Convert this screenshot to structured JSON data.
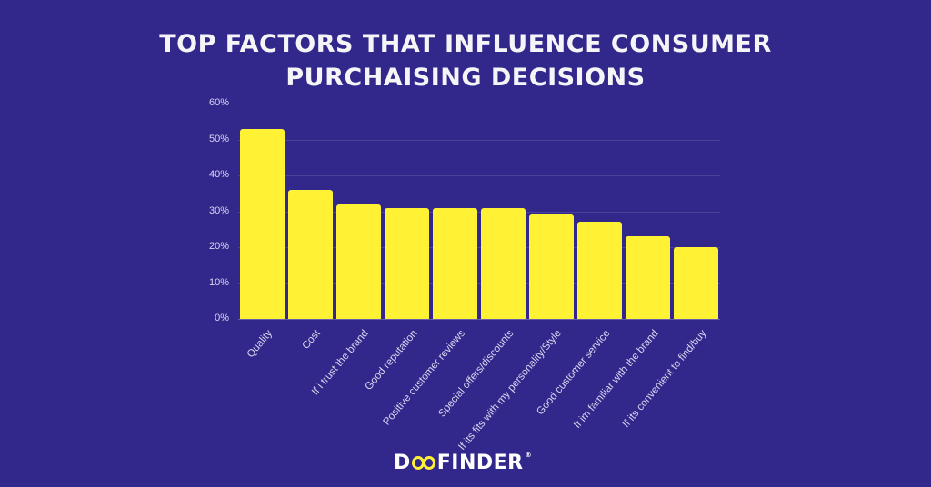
{
  "header": {
    "title_line1": "TOP FACTORS THAT INFLUENCE CONSUMER",
    "title_line2": "PURCHAISING DECISIONS"
  },
  "logo": {
    "prefix": "D",
    "suffix": "FINDER",
    "registered": "®",
    "accent_color": "#fff133"
  },
  "colors": {
    "background": "#32288c",
    "bar": "#fff133",
    "text": "#ffffff"
  },
  "chart_data": {
    "type": "bar",
    "title": "TOP FACTORS THAT INFLUENCE CONSUMER PURCHAISING DECISIONS",
    "xlabel": "",
    "ylabel": "",
    "ylim": [
      0,
      60
    ],
    "yticks": [
      "0%",
      "10%",
      "20%",
      "30%",
      "40%",
      "50%",
      "60%"
    ],
    "grid": true,
    "legend": null,
    "categories": [
      "Quality",
      "Cost",
      "If i trust the brand",
      "Good reputation",
      "Positive customer reviews",
      "Special offers/discounts",
      "If its fits with my personality/Style",
      "Good customer service",
      "If im familiar with the brand",
      "If its convenient to find/buy"
    ],
    "values": [
      53,
      36,
      32,
      31,
      31,
      31,
      29,
      27,
      23,
      20
    ],
    "unit": "%"
  }
}
